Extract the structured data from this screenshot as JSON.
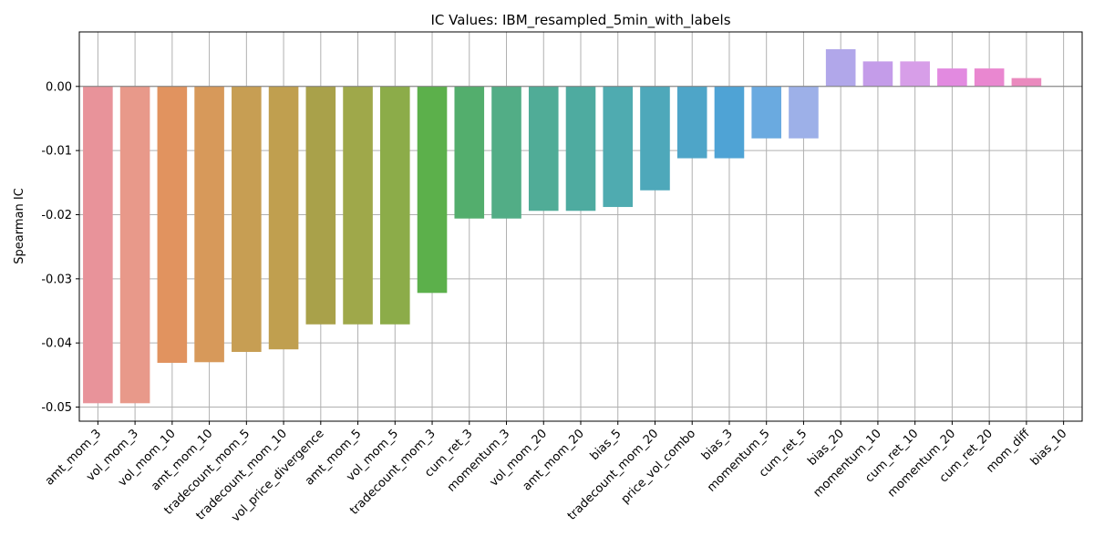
{
  "chart_data": {
    "type": "bar",
    "title": "IC Values: IBM_resampled_5min_with_labels",
    "xlabel": "",
    "ylabel": "Spearman IC",
    "ylim": [
      -0.0522,
      0.0085
    ],
    "yticks": [
      "0.00",
      "-0.01",
      "-0.02",
      "-0.03",
      "-0.04",
      "-0.05"
    ],
    "grid": true,
    "categories": [
      "amt_mom_3",
      "vol_mom_3",
      "vol_mom_10",
      "amt_mom_10",
      "tradecount_mom_5",
      "tradecount_mom_10",
      "vol_price_divergence",
      "amt_mom_5",
      "vol_mom_5",
      "tradecount_mom_3",
      "cum_ret_3",
      "momentum_3",
      "vol_mom_20",
      "amt_mom_20",
      "bias_5",
      "tradecount_mom_20",
      "price_vol_combo",
      "bias_3",
      "momentum_5",
      "cum_ret_5",
      "bias_20",
      "momentum_10",
      "cum_ret_10",
      "momentum_20",
      "cum_ret_20",
      "mom_diff",
      "bias_10"
    ],
    "values": [
      -0.0494,
      -0.0494,
      -0.0431,
      -0.043,
      -0.0414,
      -0.041,
      -0.0371,
      -0.0371,
      -0.0371,
      -0.0322,
      -0.0206,
      -0.0206,
      -0.0194,
      -0.0194,
      -0.0188,
      -0.0162,
      -0.0112,
      -0.0112,
      -0.0081,
      -0.0081,
      0.0058,
      0.0039,
      0.0039,
      0.0028,
      0.0028,
      0.0013,
      0.0
    ],
    "colors": [
      "#e8939a",
      "#e8998a",
      "#e1935f",
      "#d7995a",
      "#c79e53",
      "#c09f4f",
      "#a9a14a",
      "#9fa84a",
      "#8cac49",
      "#5cb04b",
      "#53ae6d",
      "#52ad86",
      "#50ac97",
      "#4eaba0",
      "#4fabb0",
      "#4ea8ba",
      "#4ea5c8",
      "#4fa3d5",
      "#6aaae0",
      "#9db0e8",
      "#b1a7ea",
      "#c49ce9",
      "#d79ee8",
      "#e28ae0",
      "#e987d0",
      "#ea8abe",
      "#ea8fb0"
    ]
  }
}
